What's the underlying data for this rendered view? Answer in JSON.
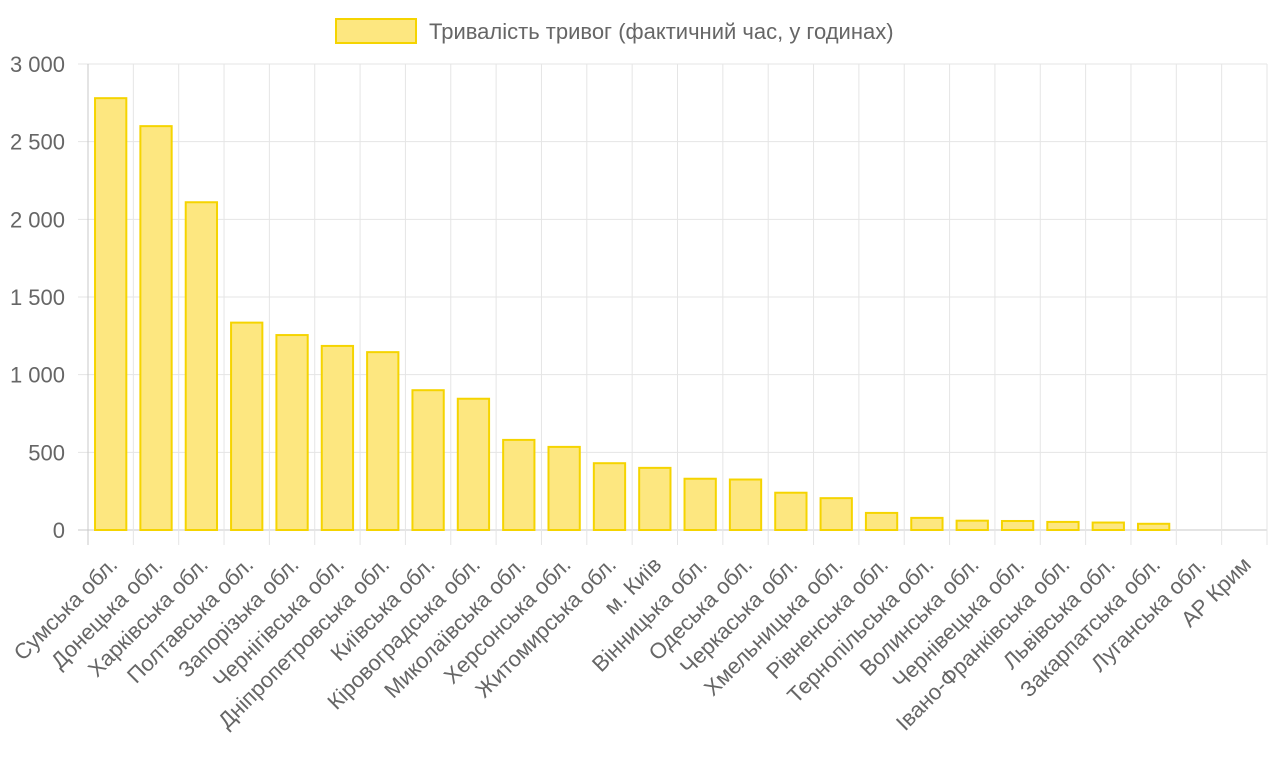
{
  "chart_data": {
    "type": "bar",
    "legend": {
      "label": "Тривалість тривог (фактичний час, у годинах)",
      "position": "top-center"
    },
    "colors": {
      "bar_fill": "#fde780",
      "bar_stroke": "#f5d400",
      "grid": "#e5e5e5",
      "text": "#666666"
    },
    "categories": [
      "Сумська обл.",
      "Донецька обл.",
      "Харківська обл.",
      "Полтавська обл.",
      "Запорізька обл.",
      "Чернігівська обл.",
      "Дніпропетровська обл.",
      "Київська обл.",
      "Кіровоградська обл.",
      "Миколаївська обл.",
      "Херсонська обл.",
      "Житомирська обл.",
      "м. Київ",
      "Вінницька обл.",
      "Одеська обл.",
      "Черкаська обл.",
      "Хмельницька обл.",
      "Рівненська обл.",
      "Тернопільська обл.",
      "Волинська обл.",
      "Чернівецька обл.",
      "Івано-Франківська обл.",
      "Львівська обл.",
      "Закарпатська обл.",
      "Луганська обл.",
      "АР Крим"
    ],
    "values": [
      2780,
      2600,
      2110,
      1335,
      1255,
      1185,
      1145,
      900,
      845,
      580,
      535,
      430,
      400,
      330,
      325,
      240,
      205,
      110,
      78,
      60,
      58,
      52,
      48,
      40,
      0,
      0
    ],
    "yticks": [
      {
        "value": 0,
        "label": "0"
      },
      {
        "value": 500,
        "label": "500"
      },
      {
        "value": 1000,
        "label": "1 000"
      },
      {
        "value": 1500,
        "label": "1 500"
      },
      {
        "value": 2000,
        "label": "2 000"
      },
      {
        "value": 2500,
        "label": "2 500"
      },
      {
        "value": 3000,
        "label": "3 000"
      }
    ],
    "ylim": [
      0,
      3000
    ],
    "grid": true,
    "title": "",
    "xlabel": "",
    "ylabel": ""
  }
}
